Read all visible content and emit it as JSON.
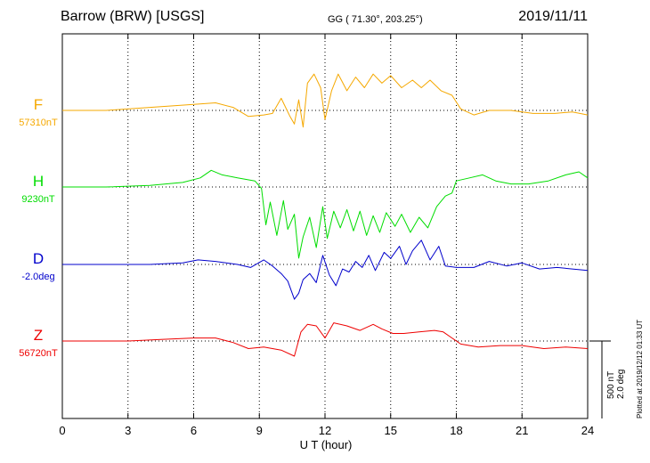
{
  "header": {
    "station": "Barrow (BRW)  [USGS]",
    "coords": "GG ( 71.30°, 203.25°)",
    "date": "2019/11/11"
  },
  "plotted_note": "Plotted at 2019/12/12 01:33 UT",
  "scale": {
    "nt": "500 nT",
    "deg": "2.0 deg"
  },
  "colors": {
    "F": "#f5a800",
    "H": "#00dd00",
    "D": "#0000cc",
    "Z": "#ee0000",
    "grid": "#000000"
  },
  "chart_data": {
    "type": "line",
    "xlabel": "U T (hour)",
    "xlim": [
      0,
      24
    ],
    "xticks": [
      0,
      3,
      6,
      9,
      12,
      15,
      18,
      21,
      24
    ],
    "xtick_labels": [
      "0",
      "3",
      "6",
      "9",
      "12",
      "15",
      "18",
      "21",
      "24"
    ],
    "grid": true,
    "units": "nT",
    "series": [
      {
        "name": "F",
        "baseline_label": "57310nT",
        "values": [
          [
            0,
            0
          ],
          [
            2,
            0
          ],
          [
            4,
            20
          ],
          [
            6,
            40
          ],
          [
            7,
            50
          ],
          [
            7.8,
            20
          ],
          [
            8.5,
            -40
          ],
          [
            9.2,
            -30
          ],
          [
            9.6,
            -20
          ],
          [
            10,
            80
          ],
          [
            10.4,
            -40
          ],
          [
            10.6,
            -90
          ],
          [
            10.8,
            70
          ],
          [
            11,
            -110
          ],
          [
            11.2,
            180
          ],
          [
            11.5,
            240
          ],
          [
            11.8,
            150
          ],
          [
            12,
            -60
          ],
          [
            12.3,
            130
          ],
          [
            12.6,
            240
          ],
          [
            13,
            130
          ],
          [
            13.4,
            220
          ],
          [
            13.8,
            150
          ],
          [
            14.2,
            240
          ],
          [
            14.6,
            180
          ],
          [
            15,
            230
          ],
          [
            15.5,
            150
          ],
          [
            16,
            200
          ],
          [
            16.4,
            150
          ],
          [
            16.8,
            200
          ],
          [
            17.3,
            130
          ],
          [
            17.8,
            100
          ],
          [
            18.2,
            10
          ],
          [
            18.8,
            -30
          ],
          [
            19.5,
            0
          ],
          [
            20.5,
            0
          ],
          [
            21.5,
            -20
          ],
          [
            22.5,
            -20
          ],
          [
            23.3,
            -10
          ],
          [
            24,
            -30
          ]
        ]
      },
      {
        "name": "H",
        "baseline_label": "9230nT",
        "values": [
          [
            0,
            0
          ],
          [
            2,
            0
          ],
          [
            4,
            10
          ],
          [
            5.5,
            30
          ],
          [
            6.3,
            60
          ],
          [
            6.8,
            110
          ],
          [
            7.3,
            80
          ],
          [
            8,
            60
          ],
          [
            8.8,
            40
          ],
          [
            9.1,
            -10
          ],
          [
            9.3,
            -250
          ],
          [
            9.5,
            -100
          ],
          [
            9.8,
            -320
          ],
          [
            10.1,
            -90
          ],
          [
            10.3,
            -280
          ],
          [
            10.6,
            -180
          ],
          [
            10.8,
            -470
          ],
          [
            11,
            -330
          ],
          [
            11.3,
            -200
          ],
          [
            11.6,
            -400
          ],
          [
            11.9,
            -130
          ],
          [
            12.1,
            -340
          ],
          [
            12.4,
            -160
          ],
          [
            12.7,
            -270
          ],
          [
            13,
            -150
          ],
          [
            13.3,
            -290
          ],
          [
            13.6,
            -160
          ],
          [
            13.9,
            -320
          ],
          [
            14.2,
            -190
          ],
          [
            14.5,
            -300
          ],
          [
            14.8,
            -170
          ],
          [
            15.2,
            -260
          ],
          [
            15.5,
            -180
          ],
          [
            15.9,
            -300
          ],
          [
            16.3,
            -200
          ],
          [
            16.7,
            -270
          ],
          [
            17.1,
            -130
          ],
          [
            17.5,
            -60
          ],
          [
            17.8,
            -40
          ],
          [
            18,
            40
          ],
          [
            18.6,
            60
          ],
          [
            19.2,
            80
          ],
          [
            19.8,
            40
          ],
          [
            20.5,
            20
          ],
          [
            21.3,
            20
          ],
          [
            22.2,
            40
          ],
          [
            23,
            80
          ],
          [
            23.6,
            100
          ],
          [
            24,
            60
          ]
        ]
      },
      {
        "name": "D",
        "baseline_label": "-2.0deg",
        "values": [
          [
            0,
            0
          ],
          [
            2,
            0
          ],
          [
            4,
            0
          ],
          [
            5.5,
            10
          ],
          [
            6.2,
            30
          ],
          [
            7,
            20
          ],
          [
            8,
            0
          ],
          [
            8.6,
            -20
          ],
          [
            9.2,
            30
          ],
          [
            9.6,
            -10
          ],
          [
            10,
            -60
          ],
          [
            10.3,
            -110
          ],
          [
            10.6,
            -230
          ],
          [
            10.8,
            -190
          ],
          [
            11,
            -100
          ],
          [
            11.3,
            -60
          ],
          [
            11.6,
            -120
          ],
          [
            11.9,
            60
          ],
          [
            12.2,
            -70
          ],
          [
            12.5,
            -140
          ],
          [
            12.8,
            -30
          ],
          [
            13.1,
            -50
          ],
          [
            13.4,
            20
          ],
          [
            13.7,
            -20
          ],
          [
            14,
            60
          ],
          [
            14.3,
            -40
          ],
          [
            14.7,
            80
          ],
          [
            15,
            40
          ],
          [
            15.4,
            120
          ],
          [
            15.7,
            0
          ],
          [
            16,
            90
          ],
          [
            16.4,
            160
          ],
          [
            16.8,
            30
          ],
          [
            17.2,
            120
          ],
          [
            17.5,
            -10
          ],
          [
            18,
            -20
          ],
          [
            18.8,
            -20
          ],
          [
            19.5,
            20
          ],
          [
            20.3,
            -10
          ],
          [
            21,
            10
          ],
          [
            21.8,
            -30
          ],
          [
            22.6,
            -20
          ],
          [
            23.3,
            -30
          ],
          [
            24,
            -40
          ]
        ]
      },
      {
        "name": "Z",
        "baseline_label": "56720nT",
        "values": [
          [
            0,
            0
          ],
          [
            3,
            0
          ],
          [
            4.5,
            10
          ],
          [
            6,
            20
          ],
          [
            7,
            20
          ],
          [
            7.8,
            -10
          ],
          [
            8.5,
            -50
          ],
          [
            9.2,
            -40
          ],
          [
            10,
            -60
          ],
          [
            10.6,
            -100
          ],
          [
            10.9,
            60
          ],
          [
            11.2,
            110
          ],
          [
            11.6,
            100
          ],
          [
            12,
            20
          ],
          [
            12.4,
            120
          ],
          [
            13,
            100
          ],
          [
            13.6,
            70
          ],
          [
            14.2,
            110
          ],
          [
            14.6,
            80
          ],
          [
            15.1,
            50
          ],
          [
            15.6,
            50
          ],
          [
            16.3,
            60
          ],
          [
            17,
            70
          ],
          [
            17.4,
            60
          ],
          [
            17.8,
            20
          ],
          [
            18.2,
            -20
          ],
          [
            19,
            -40
          ],
          [
            20,
            -30
          ],
          [
            21,
            -30
          ],
          [
            22,
            -50
          ],
          [
            23,
            -40
          ],
          [
            24,
            -50
          ]
        ]
      }
    ]
  }
}
